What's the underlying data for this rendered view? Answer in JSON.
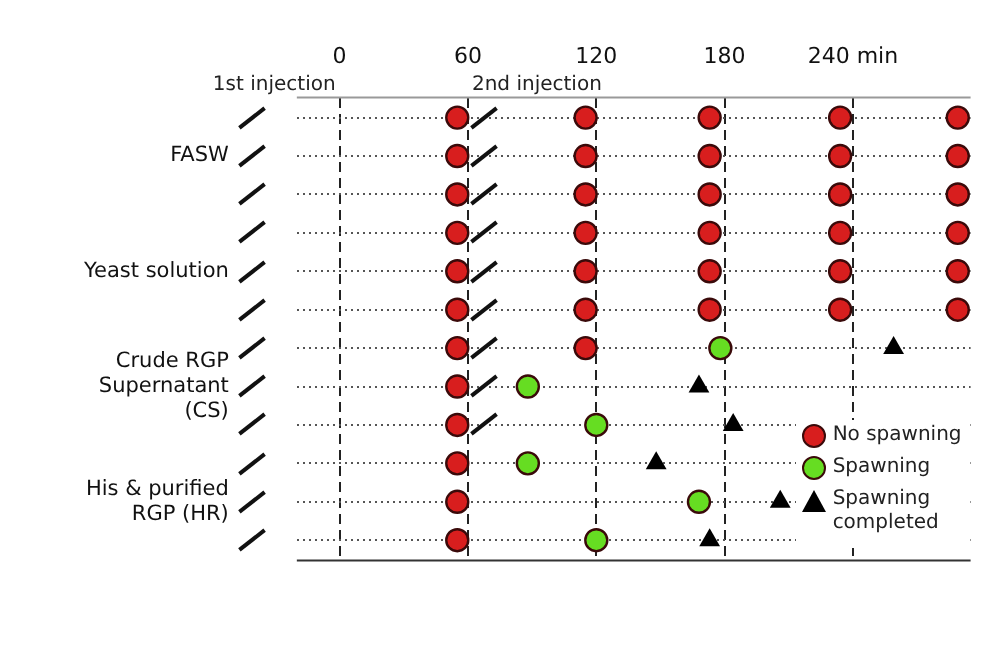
{
  "chart_data": {
    "type": "scatter",
    "orientation": "horizontal",
    "categories": [
      null,
      "FASW",
      null,
      null,
      "Yeast solution",
      null,
      null,
      "Crude RGP Supernatant (CS)",
      null,
      null,
      "His & purified RGP (HR)",
      null
    ],
    "xlim": [
      -20,
      295
    ],
    "xticks": [
      0,
      60,
      120,
      180,
      {
        "value": 240,
        "label": "240 min"
      }
    ],
    "grid": true,
    "legend": "bottom right",
    "annotations": [
      "1st injection",
      "2nd injection"
    ],
    "series": [
      {
        "name": "No spawning",
        "color": "#d81e1e",
        "marker": "circle",
        "values": [
          55,
          55,
          55,
          55,
          55,
          55,
          55,
          55,
          55,
          55,
          55,
          55
        ]
      },
      {
        "color": "#d81e1e",
        "marker": "circle",
        "values": [
          115,
          115,
          115,
          115,
          115,
          115,
          115,
          null,
          null,
          null,
          null,
          null
        ]
      },
      {
        "color": "#d81e1e",
        "marker": "circle",
        "values": [
          173,
          173,
          173,
          173,
          173,
          173,
          null,
          null,
          null,
          null,
          null,
          null
        ]
      },
      {
        "color": "#d81e1e",
        "marker": "circle",
        "values": [
          234,
          234,
          234,
          234,
          234,
          234,
          null,
          null,
          null,
          null,
          null,
          null
        ]
      },
      {
        "color": "#d81e1e",
        "marker": "circle",
        "values": [
          289,
          289,
          289,
          289,
          289,
          289,
          null,
          null,
          null,
          null,
          null,
          null
        ]
      },
      {
        "name": "Spawning",
        "color": "#66dd22",
        "marker": "circle",
        "values": [
          null,
          null,
          null,
          null,
          null,
          null,
          178,
          88,
          120,
          88,
          168,
          120
        ]
      },
      {
        "name": "Spawning completed",
        "color": "#000000",
        "marker": "triangle",
        "values": [
          null,
          null,
          null,
          null,
          null,
          null,
          259,
          168,
          184,
          148,
          206,
          173
        ]
      }
    ]
  }
}
